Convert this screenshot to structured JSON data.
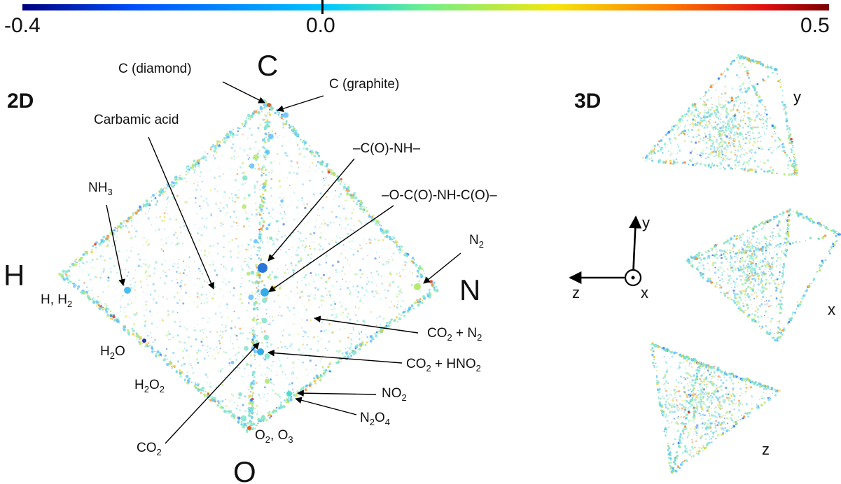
{
  "colorbar": {
    "min_label": "-0.4",
    "mid_label": "0.0",
    "max_label": "0.5",
    "colors": [
      "#000080",
      "#0050ff",
      "#00c8ff",
      "#6fef8a",
      "#f5e60a",
      "#ff7a00",
      "#e01010",
      "#7a0000"
    ]
  },
  "panel_2d": {
    "title": "2D",
    "vertices": {
      "top": "C",
      "left": "H",
      "right": "N",
      "bottom": "O"
    },
    "annotations": {
      "diamond": "C (diamond)",
      "graphite": "C (graphite)",
      "carbamic": "Carbamic acid",
      "amide": "–C(O)-NH–",
      "imide": "–O-C(O)-NH-C(O)–",
      "nh3_pre": "NH",
      "nh3_sub": "3",
      "hh2_pre": "H, H",
      "hh2_sub": "2",
      "h2o_pre": "H",
      "h2o_sub": "2",
      "h2o_post": "O",
      "h2o2_pre": "H",
      "h2o2_sub1": "2",
      "h2o2_mid": "O",
      "h2o2_sub2": "2",
      "n2_pre": "N",
      "n2_sub": "2",
      "co2n2_pre": "CO",
      "co2n2_sub1": "2",
      "co2n2_mid": " + N",
      "co2n2_sub2": "2",
      "co2hno2_pre": "CO",
      "co2hno2_sub1": "2",
      "co2hno2_mid": " + HNO",
      "co2hno2_sub2": "2",
      "no2_pre": "NO",
      "no2_sub": "2",
      "n2o4_pre": "N",
      "n2o4_sub1": "2",
      "n2o4_mid": "O",
      "n2o4_sub2": "4",
      "o2o3_pre": "O",
      "o2o3_sub1": "2",
      "o2o3_mid": ", O",
      "o2o3_sub2": "3",
      "co2_pre": "CO",
      "co2_sub": "2"
    }
  },
  "panel_3d": {
    "title": "3D",
    "axes": {
      "y": "y",
      "z": "z",
      "x": "x"
    },
    "view_labels": {
      "top": "y",
      "middle": "x",
      "bottom": "z"
    }
  }
}
